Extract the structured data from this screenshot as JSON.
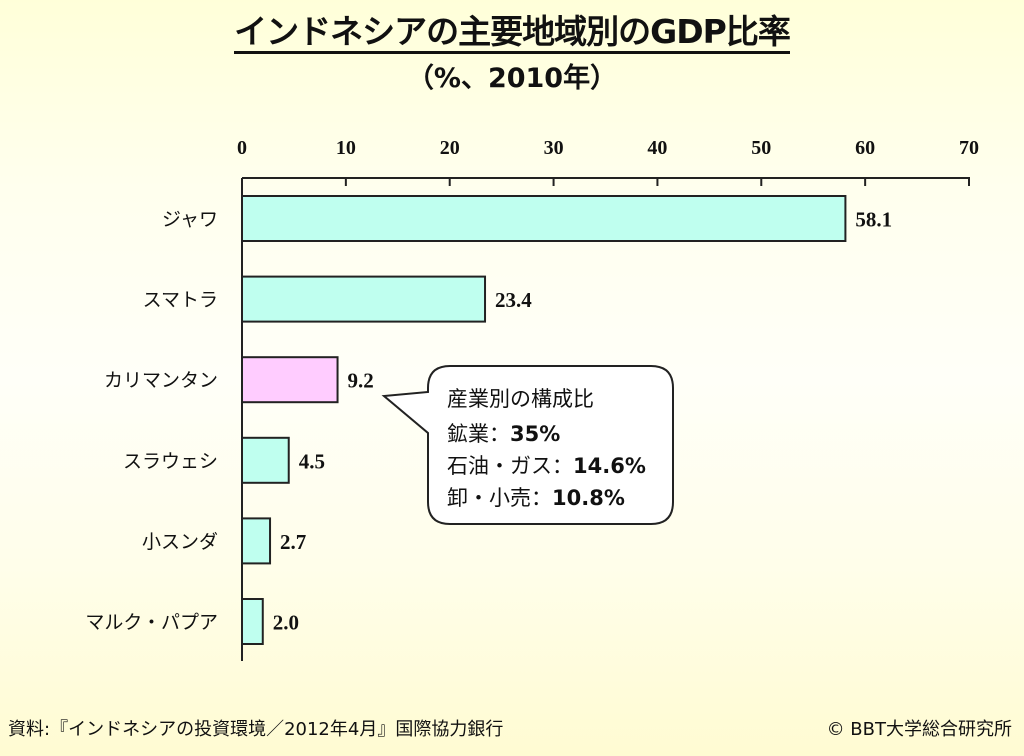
{
  "chart_data": {
    "type": "bar",
    "orientation": "horizontal",
    "title": "インドネシアの主要地域別のGDP比率",
    "subtitle": "（%、2010年）",
    "categories": [
      "ジャワ",
      "スマトラ",
      "カリマンタン",
      "スラウェシ",
      "小スンダ",
      "マルク・パプア"
    ],
    "values": [
      58.1,
      23.4,
      9.2,
      4.5,
      2.7,
      2.0
    ],
    "value_labels": [
      "58.1",
      "23.4",
      "9.2",
      "4.5",
      "2.7",
      "2.0"
    ],
    "xlim": [
      0,
      70
    ],
    "xticks": [
      0,
      10,
      20,
      30,
      40,
      50,
      60,
      70
    ],
    "xtick_labels": [
      "0",
      "10",
      "20",
      "30",
      "40",
      "50",
      "60",
      "70"
    ],
    "xaxis_position": "top",
    "xlabel": "",
    "ylabel": "",
    "grid": false,
    "colors": {
      "default": "#BFFFEF",
      "highlight": "#FFCCFF",
      "edge": "#222222"
    },
    "highlight_index": 2,
    "annotation": {
      "target": "カリマンタン",
      "lines": [
        {
          "label": "産業別の構成比",
          "value": ""
        },
        {
          "label": "鉱業：",
          "value": "35%"
        },
        {
          "label": "石油・ガス：",
          "value": "14.6%"
        },
        {
          "label": "卸・小売：",
          "value": "10.8%"
        }
      ]
    }
  },
  "footer": {
    "source": "資料:『インドネシアの投資環境／2012年4月』国際協力銀行",
    "copyright": "© BBT大学総合研究所"
  }
}
